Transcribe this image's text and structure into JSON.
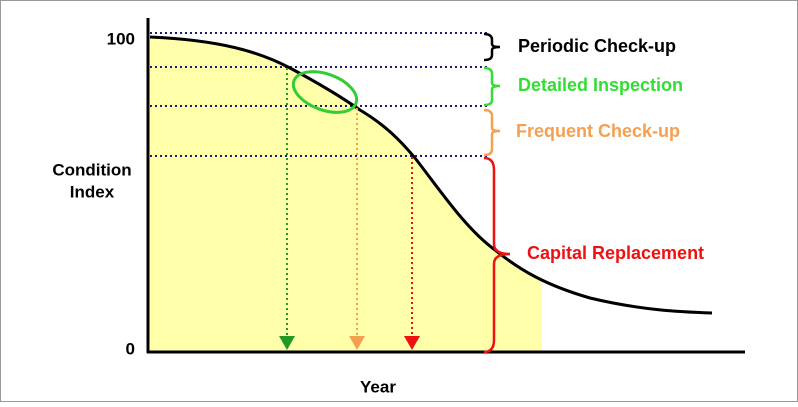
{
  "axes": {
    "y_label": [
      "Condition",
      "Index"
    ],
    "x_label": "Year",
    "y_ticks": [
      "100",
      "0"
    ]
  },
  "zones": [
    {
      "label": "Periodic Check-up",
      "color": "#000000"
    },
    {
      "label": "Detailed Inspection",
      "color": "#33dd33"
    },
    {
      "label": "Frequent Check-up",
      "color": "#f5a050"
    },
    {
      "label": "Capital Replacement",
      "color": "#ee1111"
    }
  ]
}
